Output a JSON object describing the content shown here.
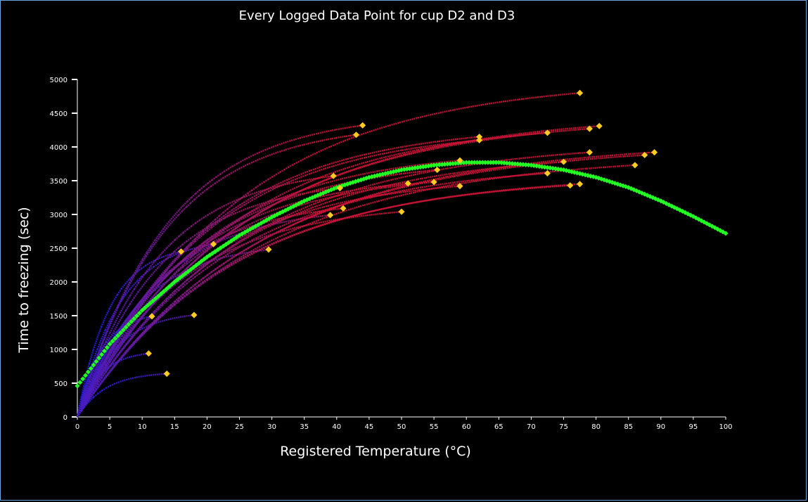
{
  "chart_data": {
    "type": "scatter",
    "title": "Every Logged Data Point for cup D2 and D3",
    "xlabel": "Registered Temperature (°C)",
    "ylabel": "Time to freezing (sec)",
    "xlim": [
      0,
      100
    ],
    "ylim": [
      0,
      5000
    ],
    "x_ticks": [
      "0",
      "5",
      "10",
      "15",
      "20",
      "25",
      "30",
      "35",
      "40",
      "45",
      "50",
      "55",
      "60",
      "65",
      "70",
      "75",
      "80",
      "85",
      "90",
      "95",
      "100"
    ],
    "y_ticks": [
      "0",
      "500",
      "1000",
      "1500",
      "2000",
      "2500",
      "3000",
      "3500",
      "4000",
      "4500",
      "5000"
    ],
    "grid": false,
    "legend": "none",
    "background": "#000000",
    "colors": {
      "low_series": "#2a1fe0",
      "high_series": "#d01438",
      "fit": "#22ff22",
      "endpoints": "#ffcc22"
    },
    "series": [
      {
        "end_x": 13.8,
        "end_y": 640
      },
      {
        "end_x": 11.0,
        "end_y": 940
      },
      {
        "end_x": 18.0,
        "end_y": 1510
      },
      {
        "end_x": 11.5,
        "end_y": 1490
      },
      {
        "end_x": 16.0,
        "end_y": 2450
      },
      {
        "end_x": 21.0,
        "end_y": 2560
      },
      {
        "end_x": 29.5,
        "end_y": 2480
      },
      {
        "end_x": 39.0,
        "end_y": 2990
      },
      {
        "end_x": 41.0,
        "end_y": 3090
      },
      {
        "end_x": 50.0,
        "end_y": 3040
      },
      {
        "end_x": 39.5,
        "end_y": 3570
      },
      {
        "end_x": 40.5,
        "end_y": 3390
      },
      {
        "end_x": 51.0,
        "end_y": 3460
      },
      {
        "end_x": 55.0,
        "end_y": 3480
      },
      {
        "end_x": 55.5,
        "end_y": 3660
      },
      {
        "end_x": 59.0,
        "end_y": 3800
      },
      {
        "end_x": 59.0,
        "end_y": 3420
      },
      {
        "end_x": 43.0,
        "end_y": 4180
      },
      {
        "end_x": 44.0,
        "end_y": 4320
      },
      {
        "end_x": 62.0,
        "end_y": 4100
      },
      {
        "end_x": 62.0,
        "end_y": 4150
      },
      {
        "end_x": 72.5,
        "end_y": 3610
      },
      {
        "end_x": 72.5,
        "end_y": 4210
      },
      {
        "end_x": 75.0,
        "end_y": 3780
      },
      {
        "end_x": 76.0,
        "end_y": 3430
      },
      {
        "end_x": 77.5,
        "end_y": 3450
      },
      {
        "end_x": 77.5,
        "end_y": 4800
      },
      {
        "end_x": 79.0,
        "end_y": 3920
      },
      {
        "end_x": 79.0,
        "end_y": 4270
      },
      {
        "end_x": 80.5,
        "end_y": 4310
      },
      {
        "end_x": 86.0,
        "end_y": 3730
      },
      {
        "end_x": 87.5,
        "end_y": 3880
      },
      {
        "end_x": 89.0,
        "end_y": 3920
      }
    ],
    "fit_curve": {
      "x": [
        0,
        5,
        10,
        15,
        20,
        25,
        30,
        35,
        40,
        45,
        50,
        55,
        60,
        65,
        70,
        75,
        80,
        85,
        90,
        95,
        100
      ],
      "y": [
        460,
        1080,
        1580,
        2000,
        2370,
        2690,
        2960,
        3200,
        3400,
        3550,
        3660,
        3730,
        3770,
        3770,
        3730,
        3660,
        3550,
        3400,
        3200,
        2970,
        2720
      ]
    }
  }
}
